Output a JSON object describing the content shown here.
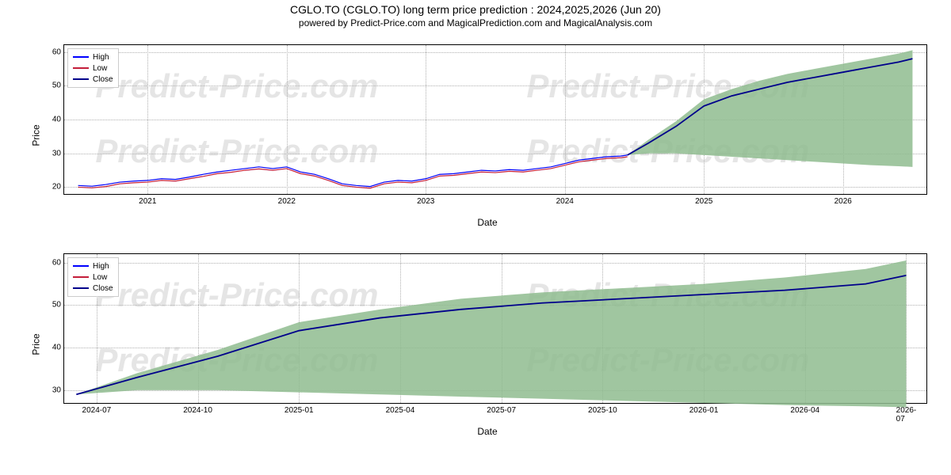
{
  "title": "CGLO.TO (CGLO.TO) long term price prediction : 2024,2025,2026 (Jun 20)",
  "subtitle": "powered by Predict-Price.com and MagicalPrediction.com and MagicalAnalysis.com",
  "watermark_text": "Predict-Price.com",
  "legend": {
    "items": [
      {
        "label": "High",
        "color": "#0000ff"
      },
      {
        "label": "Low",
        "color": "#c41e3a"
      },
      {
        "label": "Close",
        "color": "#00008b"
      }
    ]
  },
  "chart_top": {
    "type": "line_with_area",
    "xlabel": "Date",
    "ylabel": "Price",
    "ylim": [
      18,
      62
    ],
    "yticks": [
      20,
      30,
      40,
      50,
      60
    ],
    "xrange": [
      2020.4,
      2026.6
    ],
    "xticks": [
      {
        "pos": 2021.0,
        "label": "2021"
      },
      {
        "pos": 2022.0,
        "label": "2022"
      },
      {
        "pos": 2023.0,
        "label": "2023"
      },
      {
        "pos": 2024.0,
        "label": "2024"
      },
      {
        "pos": 2025.0,
        "label": "2025"
      },
      {
        "pos": 2026.0,
        "label": "2026"
      }
    ],
    "area_color": "#8fbc8f",
    "background_color": "#ffffff",
    "grid_color": "#b0b0b0",
    "historical": {
      "high_color": "#0000ff",
      "low_color": "#c41e3a",
      "x": [
        2020.5,
        2020.6,
        2020.7,
        2020.8,
        2020.9,
        2021.0,
        2021.1,
        2021.2,
        2021.3,
        2021.4,
        2021.5,
        2021.6,
        2021.7,
        2021.8,
        2021.9,
        2022.0,
        2022.1,
        2022.2,
        2022.3,
        2022.4,
        2022.5,
        2022.6,
        2022.7,
        2022.8,
        2022.9,
        2023.0,
        2023.1,
        2023.2,
        2023.3,
        2023.4,
        2023.5,
        2023.6,
        2023.7,
        2023.8,
        2023.9,
        2024.0,
        2024.1,
        2024.2,
        2024.3,
        2024.4,
        2024.45
      ],
      "high": [
        20.5,
        20.3,
        20.8,
        21.5,
        21.8,
        22.0,
        22.5,
        22.3,
        23.0,
        23.8,
        24.5,
        25.0,
        25.5,
        26.0,
        25.5,
        26.0,
        24.5,
        23.8,
        22.5,
        21.0,
        20.5,
        20.2,
        21.5,
        22.0,
        21.8,
        22.5,
        23.8,
        24.0,
        24.5,
        25.0,
        24.8,
        25.2,
        25.0,
        25.5,
        26.0,
        27.0,
        28.0,
        28.5,
        29.0,
        29.2,
        29.5
      ],
      "low": [
        20.0,
        19.8,
        20.2,
        21.0,
        21.3,
        21.5,
        22.0,
        21.8,
        22.5,
        23.2,
        24.0,
        24.4,
        25.0,
        25.4,
        25.0,
        25.5,
        24.0,
        23.3,
        22.0,
        20.5,
        20.0,
        19.7,
        21.0,
        21.5,
        21.3,
        22.0,
        23.3,
        23.5,
        24.0,
        24.5,
        24.3,
        24.7,
        24.5,
        25.0,
        25.5,
        26.5,
        27.5,
        28.0,
        28.5,
        28.7,
        29.0
      ]
    },
    "prediction": {
      "close_color": "#00008b",
      "x": [
        2024.45,
        2024.6,
        2024.8,
        2025.0,
        2025.2,
        2025.4,
        2025.6,
        2025.8,
        2026.0,
        2026.2,
        2026.4,
        2026.5
      ],
      "close": [
        29.5,
        33.0,
        38.0,
        44.0,
        47.0,
        49.0,
        51.0,
        52.5,
        54.0,
        55.5,
        57.0,
        58.0
      ],
      "upper": [
        29.5,
        34.0,
        39.5,
        46.0,
        49.0,
        51.5,
        53.5,
        55.0,
        56.5,
        58.0,
        59.5,
        60.5
      ],
      "lower": [
        29.5,
        30.0,
        30.0,
        29.5,
        29.0,
        28.5,
        28.0,
        27.5,
        27.0,
        26.5,
        26.2,
        26.0
      ]
    }
  },
  "chart_bottom": {
    "type": "line_with_area",
    "xlabel": "Date",
    "ylabel": "Price",
    "ylim": [
      27,
      62
    ],
    "yticks": [
      30,
      40,
      50,
      60
    ],
    "xrange": [
      2024.42,
      2026.55
    ],
    "xticks": [
      {
        "pos": 2024.5,
        "label": "2024-07"
      },
      {
        "pos": 2024.75,
        "label": "2024-10"
      },
      {
        "pos": 2025.0,
        "label": "2025-01"
      },
      {
        "pos": 2025.25,
        "label": "2025-04"
      },
      {
        "pos": 2025.5,
        "label": "2025-07"
      },
      {
        "pos": 2025.75,
        "label": "2025-10"
      },
      {
        "pos": 2026.0,
        "label": "2026-01"
      },
      {
        "pos": 2026.25,
        "label": "2026-04"
      },
      {
        "pos": 2026.5,
        "label": "2026-07"
      }
    ],
    "area_color": "#8fbc8f",
    "background_color": "#ffffff",
    "grid_color": "#b0b0b0",
    "prediction": {
      "close_color": "#00008b",
      "x": [
        2024.45,
        2024.6,
        2024.8,
        2025.0,
        2025.2,
        2025.4,
        2025.6,
        2025.8,
        2026.0,
        2026.2,
        2026.4,
        2026.5
      ],
      "close": [
        29.0,
        33.0,
        38.0,
        44.0,
        47.0,
        49.0,
        50.5,
        51.5,
        52.5,
        53.5,
        55.0,
        57.0
      ],
      "upper": [
        29.0,
        34.0,
        39.5,
        46.0,
        49.0,
        51.5,
        53.0,
        54.0,
        55.0,
        56.5,
        58.5,
        60.5
      ],
      "lower": [
        29.0,
        30.0,
        30.0,
        29.5,
        29.0,
        28.5,
        28.0,
        27.5,
        27.0,
        26.5,
        26.2,
        26.0
      ]
    }
  }
}
